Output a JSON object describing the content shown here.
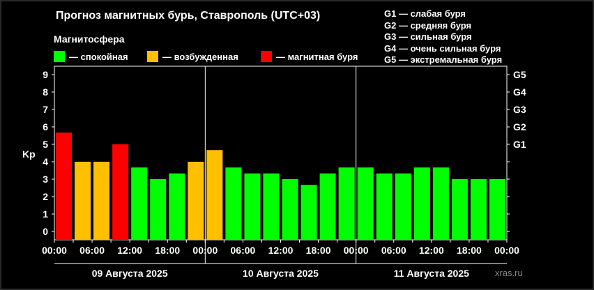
{
  "header": {
    "title": "Прогноз магнитных бурь, Ставрополь (UTC+03)",
    "magnetosphere_label": "Магнитосфера"
  },
  "legend": [
    {
      "label": "— спокойная",
      "color": "#00ff00"
    },
    {
      "label": "— возбужденная",
      "color": "#ffc000"
    },
    {
      "label": "— магнитная буря",
      "color": "#ff0000"
    }
  ],
  "g_scale": [
    "G1 — слабая буря",
    "G2 — средняя буря",
    "G3 — сильная буря",
    "G4 — очень сильная буря",
    "G5 — экстремальная буря"
  ],
  "watermark": "xras.ru",
  "chart_data": {
    "type": "bar",
    "ylabel": "Kp",
    "ylim": [
      0,
      9
    ],
    "yticks": [
      "0",
      "1",
      "2",
      "3",
      "4",
      "5",
      "6",
      "7",
      "8",
      "9"
    ],
    "right_ticks": [
      {
        "value": 5,
        "label": "G1"
      },
      {
        "value": 6,
        "label": "G2"
      },
      {
        "value": 7,
        "label": "G3"
      },
      {
        "value": 8,
        "label": "G4"
      },
      {
        "value": 9,
        "label": "G5"
      }
    ],
    "xtick_labels": [
      "00:00",
      "06:00",
      "12:00",
      "18:00",
      "00:00",
      "06:00",
      "12:00",
      "18:00",
      "00:00",
      "06:00",
      "12:00",
      "18:00",
      "00:00"
    ],
    "days": [
      "09 Августа 2025",
      "10 Августа 2025",
      "11 Августа 2025"
    ],
    "values": [
      5.67,
      4.0,
      4.0,
      5.0,
      3.67,
      3.0,
      3.33,
      4.0,
      4.67,
      3.67,
      3.33,
      3.33,
      3.0,
      2.67,
      3.33,
      3.67,
      3.67,
      3.33,
      3.33,
      3.67,
      3.67,
      3.0,
      3.0,
      3.0
    ],
    "levels": [
      "storm",
      "active",
      "active",
      "storm",
      "quiet",
      "quiet",
      "quiet",
      "active",
      "active",
      "quiet",
      "quiet",
      "quiet",
      "quiet",
      "quiet",
      "quiet",
      "quiet",
      "quiet",
      "quiet",
      "quiet",
      "quiet",
      "quiet",
      "quiet",
      "quiet",
      "quiet"
    ],
    "level_colors": {
      "quiet": "#00ff00",
      "active": "#ffc000",
      "storm": "#ff0000"
    },
    "grid": false
  }
}
